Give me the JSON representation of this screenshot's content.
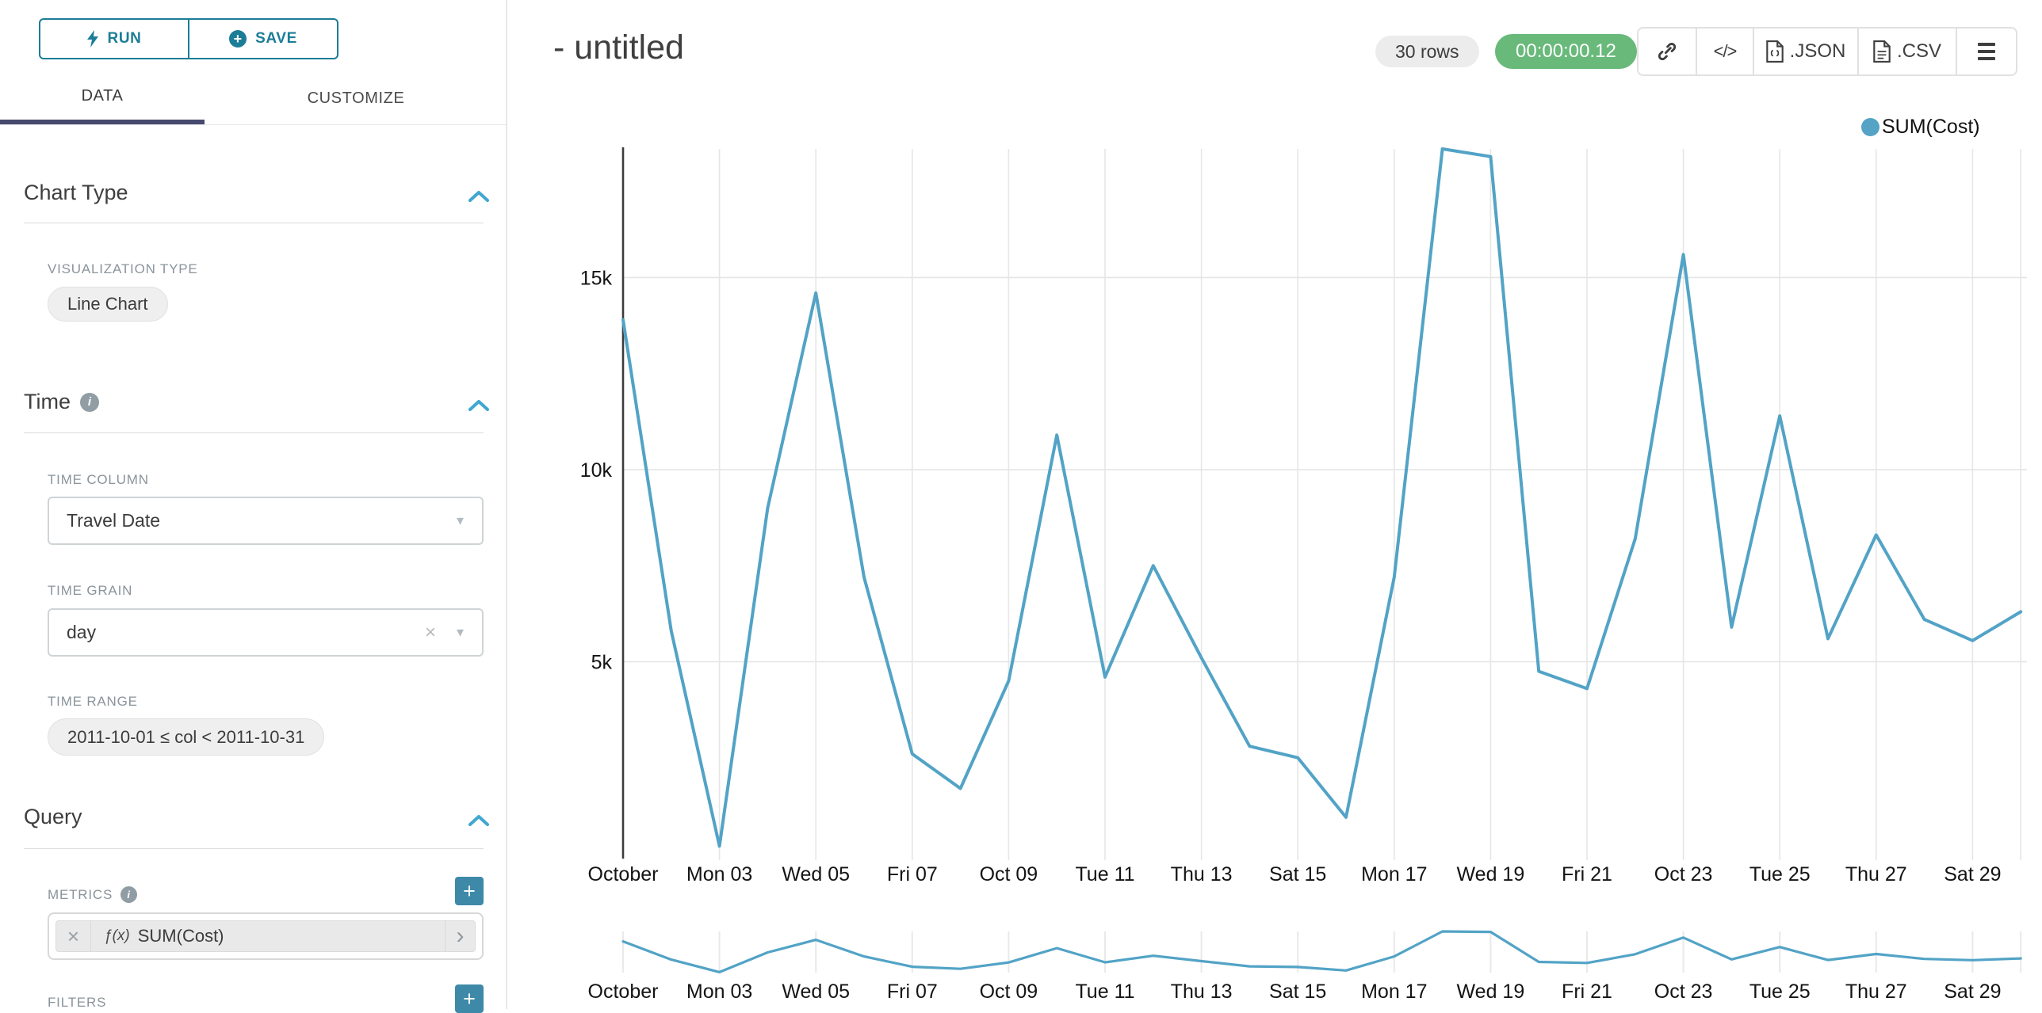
{
  "left_panel": {
    "run_button": {
      "label": "RUN",
      "icon": "bolt-icon",
      "color": "#1c7d97"
    },
    "save_button": {
      "label": "SAVE",
      "icon": "plus-circle-icon",
      "color": "#1c7d97"
    },
    "tabs": {
      "data": "DATA",
      "customize": "CUSTOMIZE",
      "active": "DATA"
    },
    "chart_type_section": {
      "title": "Chart Type",
      "visualization_type_label": "VISUALIZATION TYPE",
      "visualization_type_value": "Line Chart"
    },
    "time_section": {
      "title": "Time",
      "has_info_icon": true,
      "time_column_label": "TIME COLUMN",
      "time_column_value": "Travel Date",
      "time_grain_label": "TIME GRAIN",
      "time_grain_value": "day",
      "time_range_label": "TIME RANGE",
      "time_range_value": "2011-10-01 ≤ col < 2011-10-31"
    },
    "query_section": {
      "title": "Query",
      "metrics_label": "METRICS",
      "metric_prefix": "ƒ(x)",
      "metric_value": "SUM(Cost)",
      "filters_label": "FILTERS"
    }
  },
  "header": {
    "title": "- untitled",
    "rows_badge": "30 rows",
    "timer_badge": "00:00:00.12",
    "timer_color": "#68b97a",
    "toolbar_icons": [
      "link-icon",
      "embed-code-icon",
      "json-file-icon",
      "csv-file-icon",
      "menu-icon"
    ],
    "export_json_label": ".JSON",
    "export_csv_label": ".CSV"
  },
  "legend": {
    "label": "SUM(Cost)",
    "color": "#55a3c5"
  },
  "chart_data": {
    "type": "line",
    "title": "",
    "xlabel": "",
    "ylabel": "",
    "num_points": 30,
    "x_description": "daily values, 2011-10-01 through 2011-10-30",
    "series": [
      {
        "name": "SUM(Cost)",
        "color": "#52a3c6",
        "values": [
          13900,
          5800,
          200,
          9000,
          14600,
          7200,
          2600,
          1700,
          4500,
          10900,
          4600,
          7500,
          5100,
          2800,
          2500,
          950,
          7200,
          18350,
          18150,
          4750,
          4300,
          8200,
          15600,
          5900,
          11400,
          5600,
          8300,
          6100,
          5550,
          6300
        ]
      }
    ],
    "ylim": [
      0,
      18350
    ],
    "y_ticks": [
      {
        "label": "5k",
        "value": 5000
      },
      {
        "label": "10k",
        "value": 10000
      },
      {
        "label": "15k",
        "value": 15000
      }
    ],
    "x_ticks": [
      {
        "index": 0,
        "label": "October"
      },
      {
        "index": 2,
        "label": "Mon 03"
      },
      {
        "index": 4,
        "label": "Wed 05"
      },
      {
        "index": 6,
        "label": "Fri 07"
      },
      {
        "index": 8,
        "label": "Oct 09"
      },
      {
        "index": 10,
        "label": "Tue 11"
      },
      {
        "index": 12,
        "label": "Thu 13"
      },
      {
        "index": 14,
        "label": "Sat 15"
      },
      {
        "index": 16,
        "label": "Mon 17"
      },
      {
        "index": 18,
        "label": "Wed 19"
      },
      {
        "index": 20,
        "label": "Fri 21"
      },
      {
        "index": 22,
        "label": "Oct 23"
      },
      {
        "index": 24,
        "label": "Tue 25"
      },
      {
        "index": 26,
        "label": "Thu 27"
      },
      {
        "index": 28,
        "label": "Sat 29"
      }
    ],
    "grid": true,
    "legend_position": "top-right",
    "has_range_selector": true,
    "range_selector_shows_same_series": true
  }
}
